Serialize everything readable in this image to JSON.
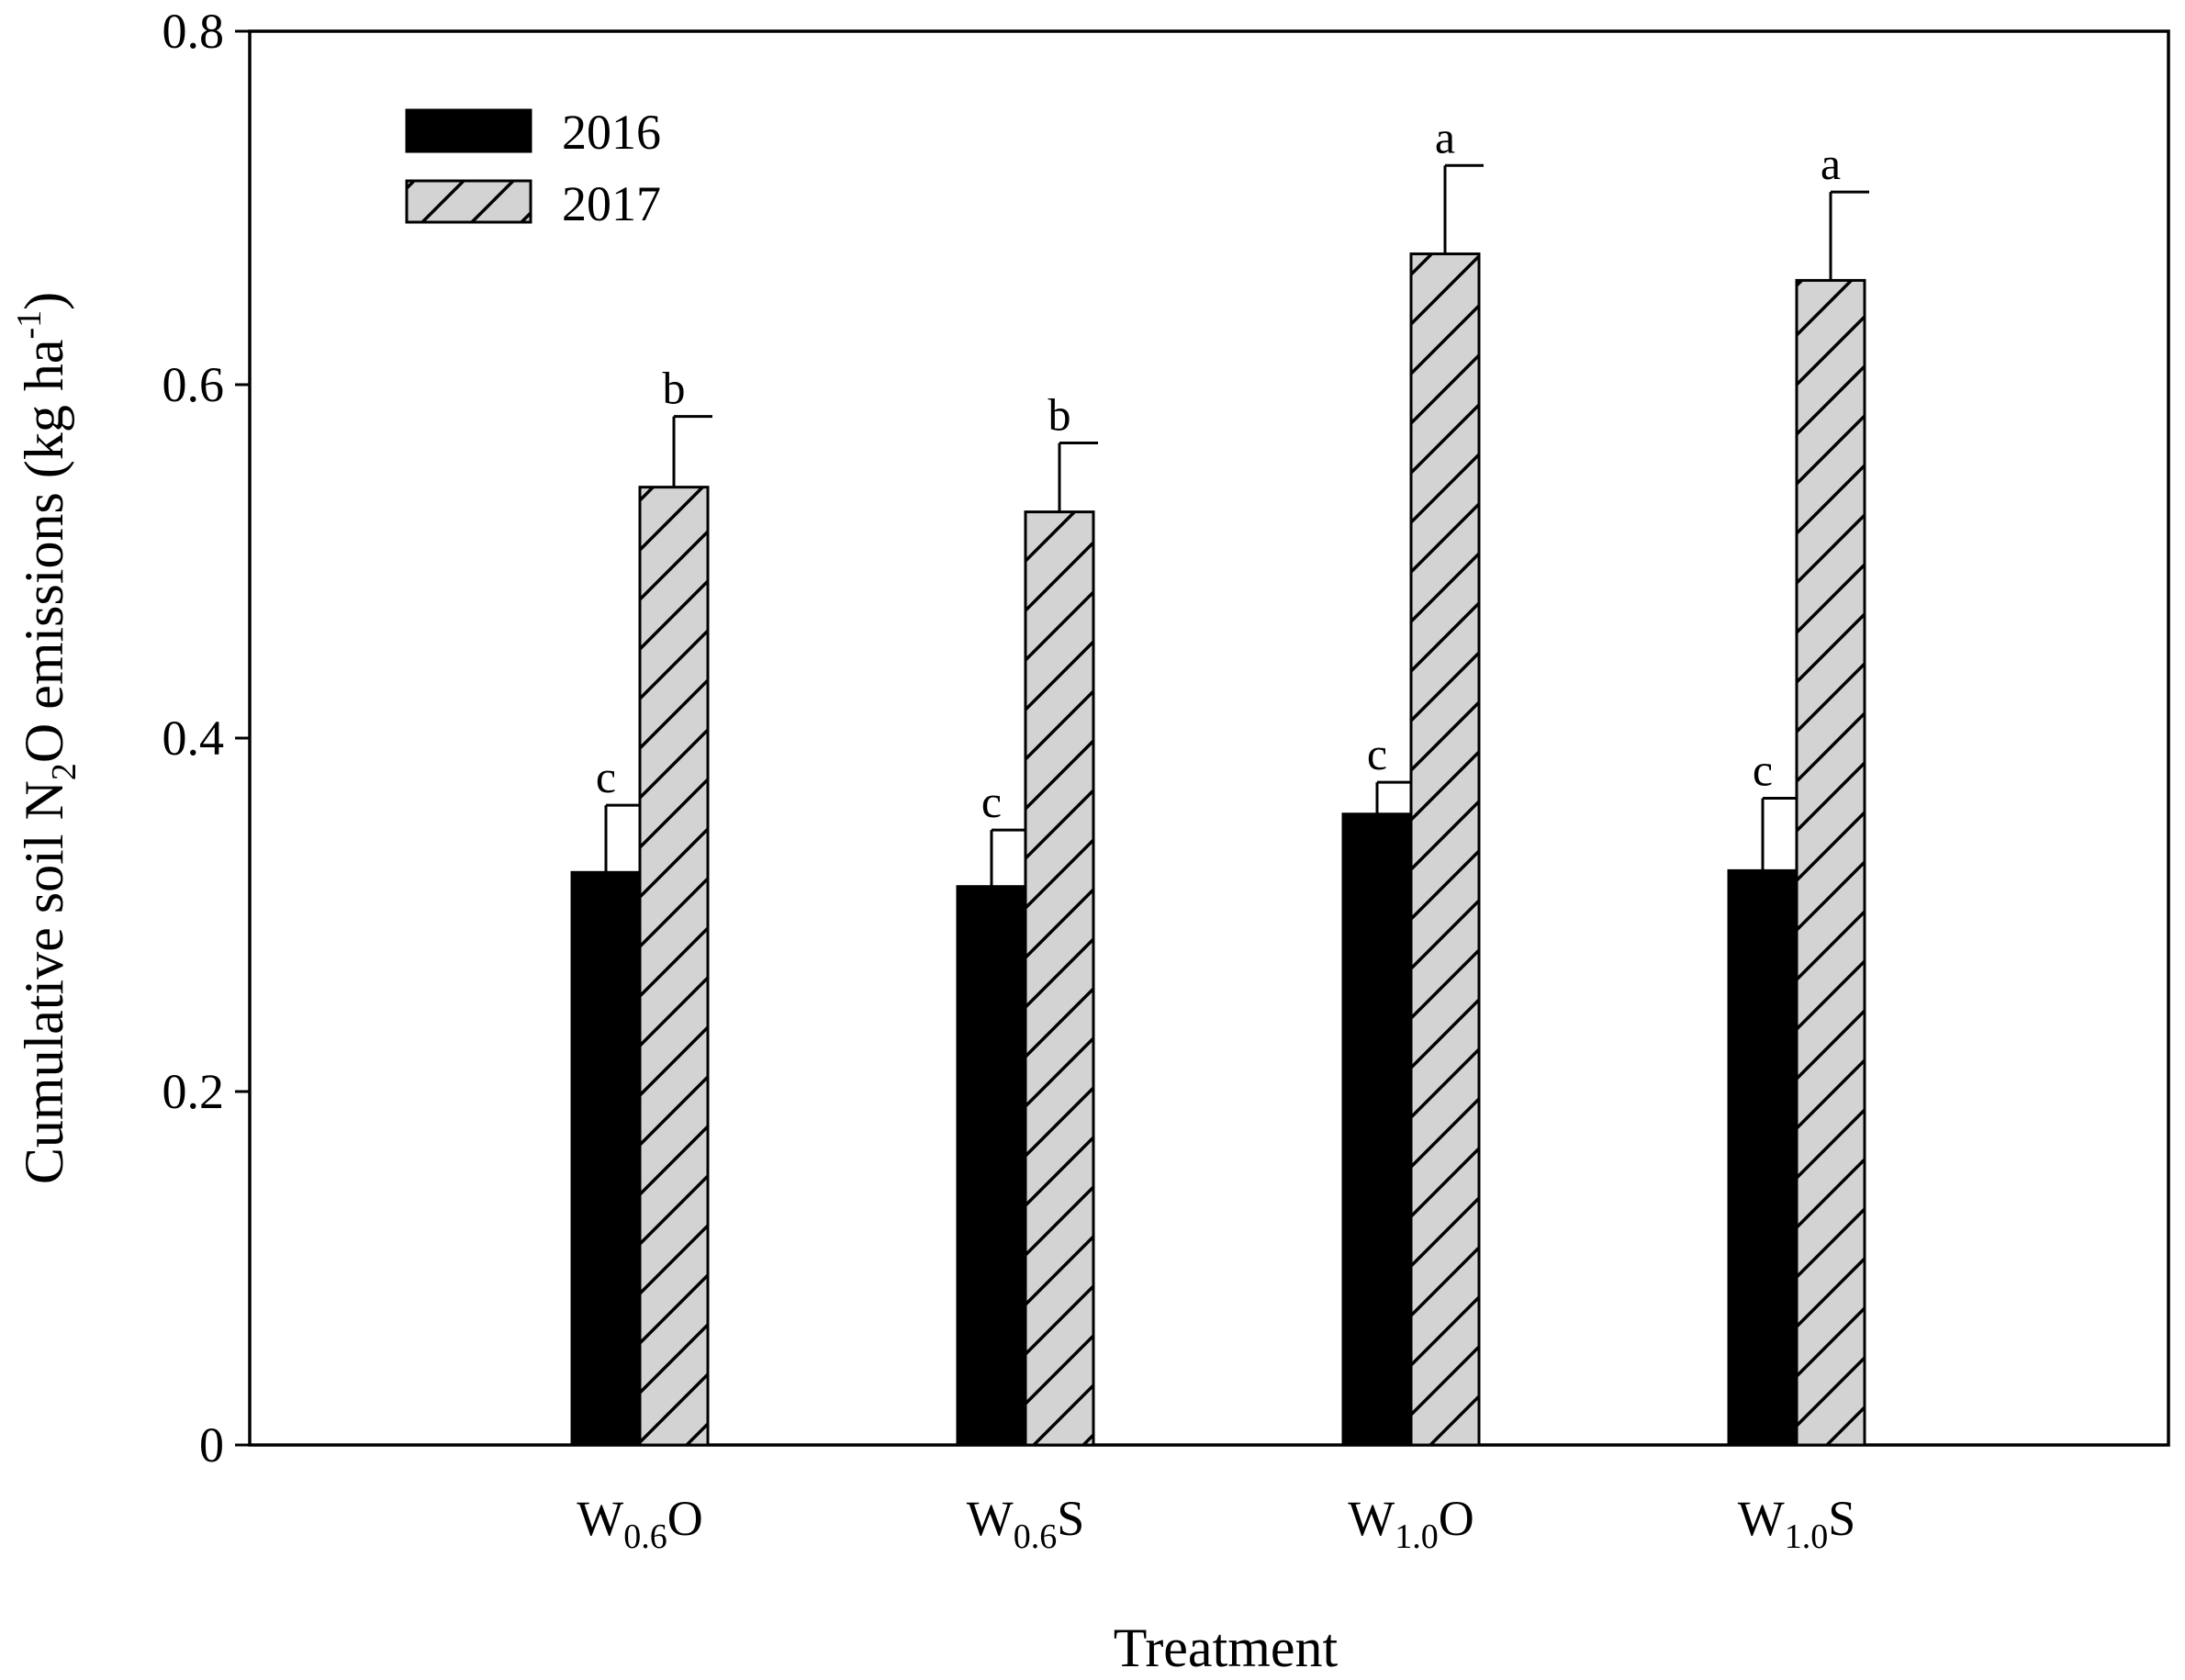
{
  "chart_data": {
    "type": "bar",
    "xlabel": "Treatment",
    "ylabel": {
      "main": "Cumulative soil N",
      "sub": "2",
      "mid": "O emissions (kg ha",
      "sup": "-1",
      "end": ")"
    },
    "ylim": [
      0,
      0.8
    ],
    "yticks": [
      "0",
      "0.2",
      "0.4",
      "0.6",
      "0.8"
    ],
    "ytick_values": [
      0,
      0.2,
      0.4,
      0.6,
      0.8
    ],
    "grid": false,
    "legend_position": "top-left",
    "categories": [
      {
        "base": "W",
        "sub": "0.6",
        "suffix": "O"
      },
      {
        "base": "W",
        "sub": "0.6",
        "suffix": "S"
      },
      {
        "base": "W",
        "sub": "1.0",
        "suffix": "O"
      },
      {
        "base": "W",
        "sub": "1.0",
        "suffix": "S"
      }
    ],
    "series": [
      {
        "name": "2016",
        "fill": "#000000",
        "pattern": "solid",
        "values": [
          0.324,
          0.316,
          0.357,
          0.325
        ],
        "errors": [
          0.038,
          0.032,
          0.018,
          0.041
        ],
        "letters": [
          "c",
          "c",
          "c",
          "c"
        ]
      },
      {
        "name": "2017",
        "fill": "#d3d3d3",
        "pattern": "hatch",
        "values": [
          0.542,
          0.528,
          0.674,
          0.659
        ],
        "errors": [
          0.04,
          0.039,
          0.05,
          0.05
        ],
        "letters": [
          "b",
          "b",
          "a",
          "a"
        ]
      }
    ]
  }
}
